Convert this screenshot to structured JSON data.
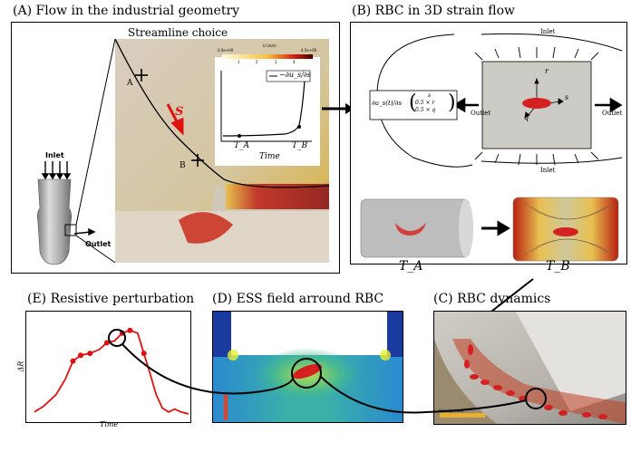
{
  "panels": {
    "a": {
      "title": "(A) Flow in the industrial geometry",
      "inlet": "Inlet",
      "outlet": "Outlet",
      "zoom_title": "Streamline choice",
      "point_a": "A",
      "point_b": "B",
      "vector_label": "S",
      "inset_legend": "−∂u_s/∂s",
      "inset_ta": "T_A",
      "inset_tb": "T_B",
      "inset_xlabel": "Time",
      "colorbar_min": "0.0e+00",
      "colorbar_title": "U (m/s)",
      "colorbar_max": "4.5e+00",
      "colorbar_ticks": [
        "1",
        "2",
        "3",
        "4"
      ]
    },
    "b": {
      "title": "(B) RBC in 3D strain flow",
      "inlet_top": "Inlet",
      "inlet_bottom": "Inlet",
      "outlet_left": "Outlet",
      "outlet_right": "Outlet",
      "axis_r": "r",
      "axis_s": "s",
      "axis_q": "q",
      "strain_lhs": "∂u_s(t)/∂s",
      "vector_row1": "s",
      "vector_row2": "0.5 × r",
      "vector_row3": "0.5 × q",
      "ta": "T_A",
      "tb": "T_B"
    },
    "c": {
      "title": "(C) RBC dynamics",
      "velocity_label": "Velocity (m/s)"
    },
    "d": {
      "title": "(D) ESS field arround RBC"
    },
    "e": {
      "title": "(E) Resistive perturbation",
      "ylabel": "ΔR",
      "xlabel": "Time"
    }
  },
  "colors": {
    "red_curve": "#e01010",
    "rbc_red": "#d42020",
    "flow_gray": "#c8c0b4",
    "field_blue": "#3a7bd5"
  },
  "chart_e": {
    "curve": [
      [
        0,
        0.04
      ],
      [
        0.06,
        0.1
      ],
      [
        0.14,
        0.22
      ],
      [
        0.2,
        0.38
      ],
      [
        0.25,
        0.57
      ],
      [
        0.3,
        0.63
      ],
      [
        0.36,
        0.65
      ],
      [
        0.42,
        0.69
      ],
      [
        0.47,
        0.76
      ],
      [
        0.52,
        0.78
      ],
      [
        0.57,
        0.86
      ],
      [
        0.62,
        0.89
      ],
      [
        0.67,
        0.86
      ],
      [
        0.71,
        0.65
      ],
      [
        0.75,
        0.44
      ],
      [
        0.79,
        0.22
      ],
      [
        0.83,
        0.08
      ],
      [
        0.87,
        0.04
      ],
      [
        0.91,
        0.07
      ],
      [
        0.95,
        0.04
      ],
      [
        1.0,
        0.02
      ]
    ],
    "markers": [
      [
        0.25,
        0.57
      ],
      [
        0.3,
        0.63
      ],
      [
        0.36,
        0.65
      ],
      [
        0.47,
        0.76
      ],
      [
        0.57,
        0.86
      ],
      [
        0.62,
        0.89
      ],
      [
        0.71,
        0.65
      ]
    ]
  }
}
